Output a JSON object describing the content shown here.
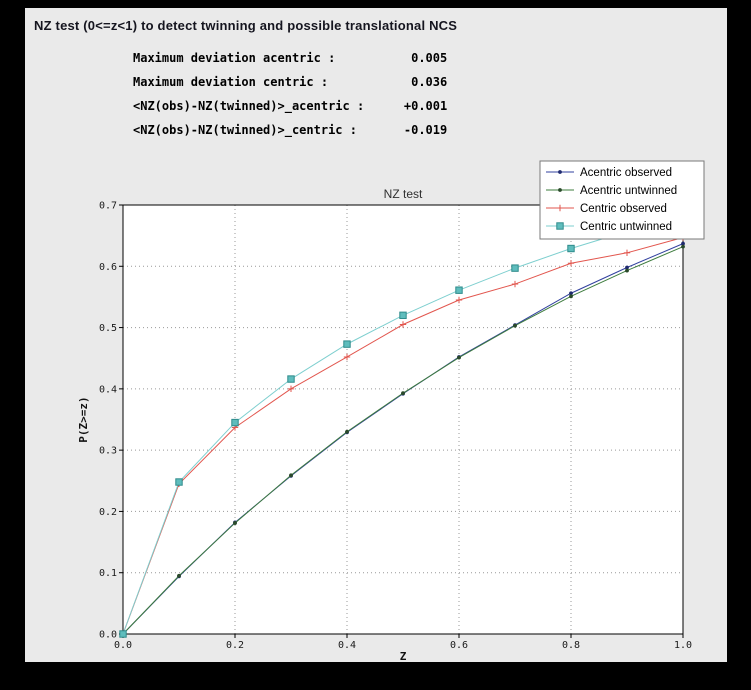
{
  "header": {
    "title": "NZ test (0<=z<1) to detect twinning and possible translational NCS"
  },
  "stats": {
    "rows": [
      {
        "label": "Maximum deviation acentric :",
        "value": "0.005"
      },
      {
        "label": "Maximum deviation centric :",
        "value": "0.036"
      },
      {
        "label": "<NZ(obs)-NZ(twinned)>_acentric :",
        "value": "+0.001"
      },
      {
        "label": "<NZ(obs)-NZ(twinned)>_centric :",
        "value": "-0.019"
      }
    ]
  },
  "chart_data": {
    "type": "line",
    "title": "NZ test",
    "xlabel": "Z",
    "ylabel": "P(Z>=z)",
    "xlim": [
      0.0,
      1.0
    ],
    "ylim": [
      0.0,
      0.7
    ],
    "x_ticks": [
      0.0,
      0.2,
      0.4,
      0.6,
      0.8,
      1.0
    ],
    "y_ticks": [
      0.0,
      0.1,
      0.2,
      0.3,
      0.4,
      0.5,
      0.6,
      0.7
    ],
    "grid": true,
    "legend_position": "top-right",
    "x": [
      0.0,
      0.1,
      0.2,
      0.3,
      0.4,
      0.5,
      0.6,
      0.7,
      0.8,
      0.9,
      1.0
    ],
    "series": [
      {
        "name": "Acentric observed",
        "color": "#31409f",
        "marker": "dot",
        "marker_color": "#1f2a6e",
        "values": [
          0.0,
          0.094,
          0.182,
          0.258,
          0.329,
          0.392,
          0.452,
          0.504,
          0.556,
          0.598,
          0.637
        ]
      },
      {
        "name": "Acentric untwinned",
        "color": "#3e7c3e",
        "marker": "dot",
        "marker_color": "#2a4a2a",
        "values": [
          0.0,
          0.095,
          0.181,
          0.259,
          0.33,
          0.393,
          0.451,
          0.503,
          0.551,
          0.593,
          0.632
        ]
      },
      {
        "name": "Centric observed",
        "color": "#e2564e",
        "marker": "plus",
        "marker_color": "#e2564e",
        "values": [
          0.0,
          0.245,
          0.337,
          0.4,
          0.452,
          0.505,
          0.545,
          0.571,
          0.605,
          0.622,
          0.647
        ]
      },
      {
        "name": "Centric untwinned",
        "color": "#7ecfcf",
        "marker": "square",
        "marker_fill": "#5fbdbd",
        "marker_edge": "#2e8b8b",
        "values": [
          0.0,
          0.248,
          0.345,
          0.416,
          0.473,
          0.52,
          0.561,
          0.597,
          0.629,
          0.657,
          0.683
        ]
      }
    ],
    "colors": {
      "panel_bg": "#eaeaea",
      "plot_bg": "#ffffff",
      "grid": "#999999",
      "frame": "#000000",
      "legend_border": "#7a7a7a"
    }
  }
}
